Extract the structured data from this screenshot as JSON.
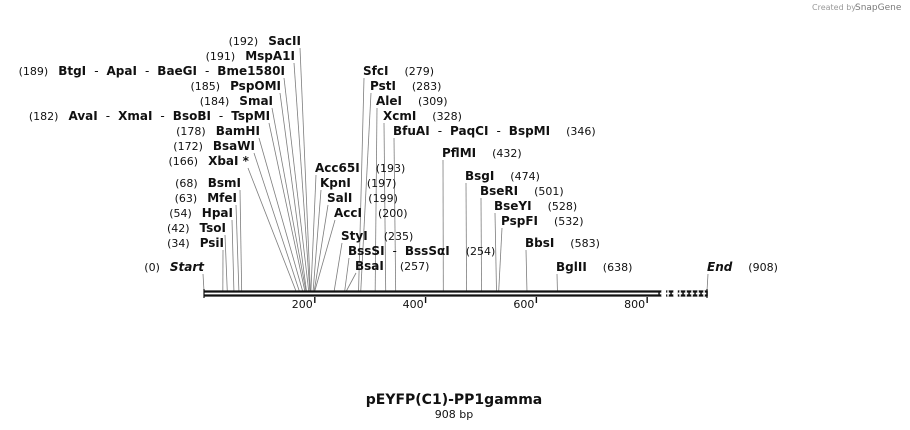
{
  "brand": {
    "created_by": "Created by",
    "name": "SnapGene"
  },
  "map": {
    "title": "pEYFP(C1)-PP1gamma",
    "length_label": "908 bp",
    "length_bp": 908,
    "axis_ticks": [
      200,
      400,
      600,
      800
    ]
  },
  "sites": [
    {
      "pos": 0,
      "num": "(0)",
      "names": [
        "Start"
      ],
      "italic": true
    },
    {
      "pos": 34,
      "num": "(34)",
      "names": [
        "PsiI"
      ]
    },
    {
      "pos": 42,
      "num": "(42)",
      "names": [
        "TsoI"
      ]
    },
    {
      "pos": 54,
      "num": "(54)",
      "names": [
        "HpaI"
      ]
    },
    {
      "pos": 63,
      "num": "(63)",
      "names": [
        "MfeI"
      ]
    },
    {
      "pos": 68,
      "num": "(68)",
      "names": [
        "BsmI"
      ]
    },
    {
      "pos": 166,
      "num": "(166)",
      "names": [
        "XbaI *"
      ]
    },
    {
      "pos": 172,
      "num": "(172)",
      "names": [
        "BsaWI"
      ]
    },
    {
      "pos": 178,
      "num": "(178)",
      "names": [
        "BamHI"
      ]
    },
    {
      "pos": 182,
      "num": "(182)",
      "names": [
        "AvaI",
        "XmaI",
        "BsoBI",
        "TspMI"
      ]
    },
    {
      "pos": 184,
      "num": "(184)",
      "names": [
        "SmaI"
      ]
    },
    {
      "pos": 185,
      "num": "(185)",
      "names": [
        "PspOMI"
      ]
    },
    {
      "pos": 189,
      "num": "(189)",
      "names": [
        "BtgI",
        "ApaI",
        "BaeGI",
        "Bme1580I"
      ]
    },
    {
      "pos": 191,
      "num": "(191)",
      "names": [
        "MspA1I"
      ]
    },
    {
      "pos": 192,
      "num": "(192)",
      "names": [
        "SacII"
      ]
    },
    {
      "pos": 193,
      "num": "(193)",
      "names": [
        "Acc65I"
      ]
    },
    {
      "pos": 197,
      "num": "(197)",
      "names": [
        "KpnI"
      ]
    },
    {
      "pos": 199,
      "num": "(199)",
      "names": [
        "SalI"
      ]
    },
    {
      "pos": 200,
      "num": "(200)",
      "names": [
        "AccI"
      ]
    },
    {
      "pos": 235,
      "num": "(235)",
      "names": [
        "StyI"
      ]
    },
    {
      "pos": 254,
      "num": "(254)",
      "names": [
        "BssSI",
        "BssSαI"
      ]
    },
    {
      "pos": 257,
      "num": "(257)",
      "names": [
        "BsaI"
      ]
    },
    {
      "pos": 279,
      "num": "(279)",
      "names": [
        "SfcI"
      ]
    },
    {
      "pos": 283,
      "num": "(283)",
      "names": [
        "PstI"
      ]
    },
    {
      "pos": 309,
      "num": "(309)",
      "names": [
        "AleI"
      ]
    },
    {
      "pos": 328,
      "num": "(328)",
      "names": [
        "XcmI"
      ]
    },
    {
      "pos": 346,
      "num": "(346)",
      "names": [
        "BfuAI",
        "PaqCI",
        "BspMI"
      ]
    },
    {
      "pos": 432,
      "num": "(432)",
      "names": [
        "PflMI"
      ]
    },
    {
      "pos": 474,
      "num": "(474)",
      "names": [
        "BsgI"
      ]
    },
    {
      "pos": 501,
      "num": "(501)",
      "names": [
        "BseRI"
      ]
    },
    {
      "pos": 528,
      "num": "(528)",
      "names": [
        "BseYI"
      ]
    },
    {
      "pos": 532,
      "num": "(532)",
      "names": [
        "PspFI"
      ]
    },
    {
      "pos": 583,
      "num": "(583)",
      "names": [
        "BbsI"
      ]
    },
    {
      "pos": 638,
      "num": "(638)",
      "names": [
        "BglII"
      ]
    },
    {
      "pos": 908,
      "num": "(908)",
      "names": [
        "End"
      ],
      "italic": true
    }
  ]
}
